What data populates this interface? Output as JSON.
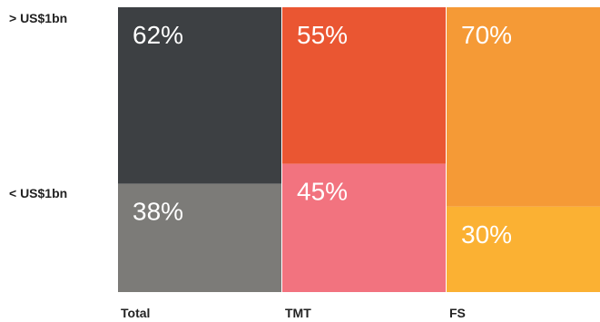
{
  "chart_data": {
    "type": "bar",
    "stacked": "percent",
    "row_labels": [
      "> US$1bn",
      "< US$1bn"
    ],
    "categories": [
      "Total",
      "TMT",
      "FS"
    ],
    "series": [
      {
        "name": "> US$1bn",
        "values": [
          62,
          55,
          70
        ],
        "labels": [
          "62%",
          "55%",
          "70%"
        ],
        "colors": [
          "#3d4043",
          "#ea5632",
          "#f59a36"
        ]
      },
      {
        "name": "< US$1bn",
        "values": [
          38,
          45,
          30
        ],
        "labels": [
          "38%",
          "45%",
          "30%"
        ],
        "colors": [
          "#7c7b78",
          "#f2737f",
          "#fbb133"
        ]
      }
    ],
    "ylim": [
      0,
      100
    ],
    "grid": false
  }
}
